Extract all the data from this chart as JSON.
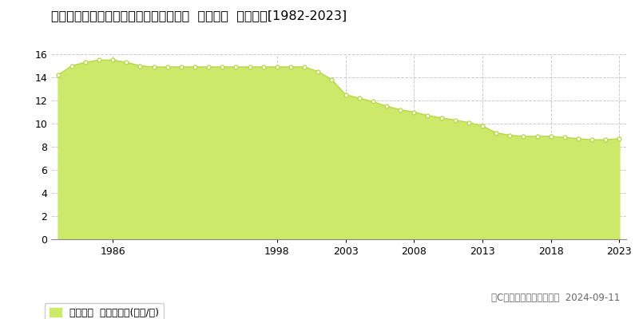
{
  "title": "熊本県八代市千反町１丁目７号２２番外  地価公示  地価推移[1982-2023]",
  "years": [
    1982,
    1983,
    1984,
    1985,
    1986,
    1987,
    1988,
    1989,
    1990,
    1991,
    1992,
    1993,
    1994,
    1995,
    1996,
    1997,
    1998,
    1999,
    2000,
    2001,
    2002,
    2003,
    2004,
    2005,
    2006,
    2007,
    2008,
    2009,
    2010,
    2011,
    2012,
    2013,
    2014,
    2015,
    2016,
    2017,
    2018,
    2019,
    2020,
    2021,
    2022,
    2023
  ],
  "values": [
    14.2,
    15.0,
    15.3,
    15.5,
    15.5,
    15.3,
    15.0,
    14.9,
    14.9,
    14.9,
    14.9,
    14.9,
    14.9,
    14.9,
    14.9,
    14.9,
    14.9,
    14.9,
    14.9,
    14.5,
    13.8,
    12.5,
    12.2,
    11.9,
    11.5,
    11.2,
    11.0,
    10.7,
    10.5,
    10.3,
    10.1,
    9.8,
    9.2,
    9.0,
    8.9,
    8.9,
    8.9,
    8.8,
    8.7,
    8.6,
    8.6,
    8.7
  ],
  "fill_color": "#cde96a",
  "line_color": "#b8d84a",
  "marker_color": "#ffffff",
  "marker_edge_color": "#b8d84a",
  "bg_color": "#ffffff",
  "plot_bg_color": "#ffffff",
  "grid_color": "#cccccc",
  "ylim": [
    0,
    16
  ],
  "yticks": [
    0,
    2,
    4,
    6,
    8,
    10,
    12,
    14,
    16
  ],
  "xtick_labels": [
    "1986",
    "1998",
    "2003",
    "2008",
    "2013",
    "2018",
    "2023"
  ],
  "xtick_positions": [
    1986,
    1998,
    2003,
    2008,
    2013,
    2018,
    2023
  ],
  "legend_label": "地価公示  平均坪単価(万円/坪)",
  "copyright_text": "（C）土地価格ドットコム  2024-09-11",
  "title_fontsize": 11.5,
  "axis_fontsize": 9,
  "legend_fontsize": 9,
  "copyright_fontsize": 8.5
}
